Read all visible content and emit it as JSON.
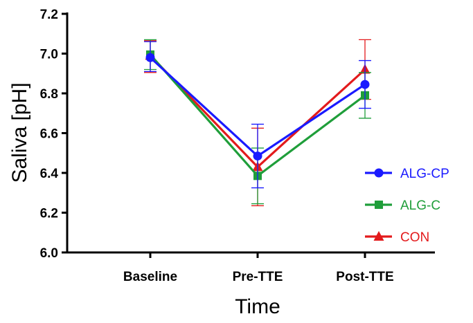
{
  "chart_data": {
    "type": "line",
    "title": "",
    "xlabel": "Time",
    "ylabel": "Saliva  [pH]",
    "categories": [
      "Baseline",
      "Pre-TTE",
      "Post-TTE"
    ],
    "ylim": [
      6.0,
      7.2
    ],
    "yticks": [
      "6.0",
      "6.2",
      "6.4",
      "6.6",
      "6.8",
      "7.0",
      "7.2"
    ],
    "grid": false,
    "legend_position": "right",
    "series": [
      {
        "name": "ALG-CP",
        "color": "#1a1aff",
        "marker": "circle",
        "values": [
          6.98,
          6.485,
          6.845
        ],
        "err_low": [
          6.91,
          6.325,
          6.725
        ],
        "err_high": [
          7.06,
          6.645,
          6.965
        ]
      },
      {
        "name": "ALG-C",
        "color": "#1f9e3a",
        "marker": "square",
        "values": [
          6.995,
          6.385,
          6.79
        ],
        "err_low": [
          6.92,
          6.245,
          6.675
        ],
        "err_high": [
          7.07,
          6.525,
          6.905
        ]
      },
      {
        "name": "CON",
        "color": "#e31a1c",
        "marker": "triangle",
        "values": [
          6.99,
          6.43,
          6.92
        ],
        "err_low": [
          6.905,
          6.235,
          6.77
        ],
        "err_high": [
          7.065,
          6.625,
          7.07
        ]
      }
    ]
  }
}
